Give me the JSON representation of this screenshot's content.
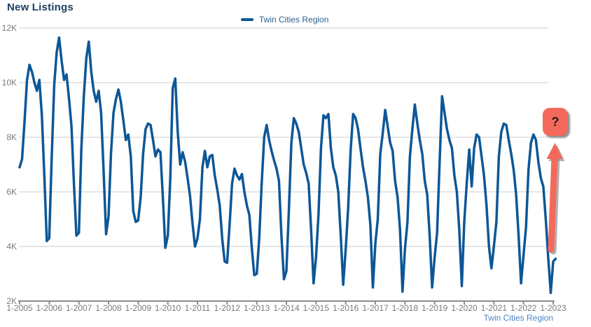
{
  "page": {
    "title": "New Listings"
  },
  "legend": {
    "label": "Twin Cities Region",
    "swatch_color": "#0d5796"
  },
  "footer": {
    "series_link": "Twin Cities Region"
  },
  "annotation": {
    "question_mark": "?",
    "arrow_color": "#f4695c",
    "shadow_color": "#8f8f8f"
  },
  "colors": {
    "title": "#1e3f60",
    "line": "#0d5796",
    "gridline": "#cccccc",
    "axis": "#8c8c8c",
    "tick_text": "#7a7a7a",
    "legend_text": "#29618f",
    "footer_link": "#4d84c4",
    "accent_red": "#f4695c"
  },
  "chart_data": {
    "type": "line",
    "title": "New Listings",
    "unit": "new listings (thousands)",
    "grid": "horizontal",
    "legend_position": "top-center",
    "x_tick_labels": [
      "1-2005",
      "1-2006",
      "1-2007",
      "1-2008",
      "1-2009",
      "1-2010",
      "1-2011",
      "1-2012",
      "1-2013",
      "1-2014",
      "1-2015",
      "1-2016",
      "1-2017",
      "1-2018",
      "1-2019",
      "1-2020",
      "1-2021",
      "1-2022",
      "1-2023"
    ],
    "y_tick_labels": [
      "2K",
      "4K",
      "6K",
      "8K",
      "10K",
      "12K"
    ],
    "ylim_k": [
      2,
      12
    ],
    "start_month": "2005-01",
    "end_month": "2023-02",
    "series": [
      {
        "name": "Twin Cities Region",
        "color": "#0d5796",
        "values_k": [
          6.9,
          7.2,
          8.6,
          10.1,
          10.65,
          10.4,
          10.0,
          9.7,
          10.1,
          8.8,
          6.6,
          4.2,
          4.3,
          7.3,
          9.9,
          11.1,
          11.65,
          10.8,
          10.1,
          10.3,
          9.4,
          8.4,
          6.3,
          4.4,
          4.5,
          7.6,
          9.5,
          10.9,
          11.5,
          10.4,
          9.7,
          9.3,
          9.7,
          8.9,
          6.8,
          4.45,
          5.1,
          7.4,
          8.9,
          9.4,
          9.75,
          9.3,
          8.6,
          7.9,
          8.1,
          7.3,
          5.3,
          4.9,
          4.95,
          5.8,
          7.4,
          8.3,
          8.5,
          8.45,
          7.9,
          7.3,
          7.55,
          7.45,
          5.8,
          3.95,
          4.4,
          6.5,
          9.8,
          10.15,
          8.2,
          7.0,
          7.45,
          7.1,
          6.5,
          5.85,
          4.85,
          4.0,
          4.3,
          5.0,
          6.9,
          7.5,
          6.9,
          7.3,
          7.35,
          6.6,
          6.1,
          5.5,
          4.3,
          3.45,
          3.4,
          4.8,
          6.3,
          6.85,
          6.6,
          6.45,
          6.65,
          6.0,
          5.5,
          5.15,
          3.95,
          2.95,
          3.0,
          4.3,
          6.3,
          8.0,
          8.45,
          7.9,
          7.5,
          7.15,
          6.85,
          6.4,
          4.4,
          2.8,
          3.1,
          5.3,
          7.8,
          8.7,
          8.5,
          8.2,
          7.6,
          7.0,
          6.7,
          6.3,
          4.6,
          2.65,
          3.6,
          5.2,
          7.6,
          8.8,
          8.7,
          8.85,
          7.6,
          6.9,
          6.6,
          6.0,
          4.4,
          2.6,
          3.9,
          5.4,
          7.5,
          8.85,
          8.7,
          8.3,
          7.6,
          6.9,
          6.4,
          5.8,
          4.8,
          2.5,
          4.1,
          5.0,
          7.4,
          8.15,
          9.0,
          8.4,
          7.8,
          7.5,
          6.4,
          5.8,
          4.6,
          2.35,
          3.9,
          4.9,
          7.3,
          8.3,
          9.2,
          8.5,
          7.9,
          7.4,
          6.4,
          5.9,
          4.4,
          2.5,
          3.6,
          4.5,
          7.0,
          9.5,
          8.9,
          8.3,
          7.9,
          7.6,
          6.6,
          6.0,
          4.6,
          2.55,
          4.9,
          6.3,
          7.55,
          6.2,
          7.6,
          8.1,
          8.0,
          7.3,
          6.6,
          5.5,
          4.0,
          3.2,
          4.0,
          4.9,
          7.3,
          8.2,
          8.5,
          8.45,
          7.9,
          7.4,
          6.8,
          5.9,
          4.4,
          2.65,
          3.7,
          4.7,
          6.8,
          7.8,
          8.1,
          7.9,
          7.1,
          6.5,
          6.2,
          5.0,
          3.6,
          2.3,
          3.45,
          3.55
        ]
      }
    ]
  }
}
